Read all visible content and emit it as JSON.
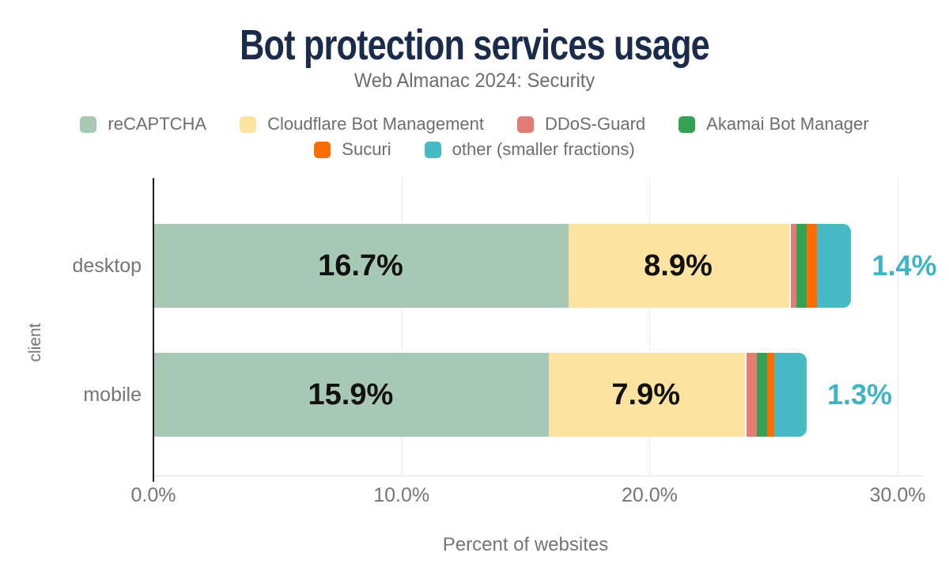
{
  "chart_data": {
    "type": "bar",
    "variant": "horizontal-stacked",
    "title": "Bot protection services usage",
    "subtitle": "Web Almanac 2024: Security",
    "xlabel": "Percent of websites",
    "ylabel": "client",
    "categories": [
      "desktop",
      "mobile"
    ],
    "series": [
      {
        "name": "reCAPTCHA",
        "color": "#a6c8b4",
        "values": [
          16.7,
          15.9
        ]
      },
      {
        "name": "Cloudflare Bot Management",
        "color": "#fde3a0",
        "values": [
          8.9,
          7.9
        ]
      },
      {
        "name": "DDoS-Guard",
        "color": "#e17d74",
        "values": [
          0.3,
          0.5
        ]
      },
      {
        "name": "Akamai Bot Manager",
        "color": "#35a152",
        "values": [
          0.4,
          0.4
        ]
      },
      {
        "name": "Sucuri",
        "color": "#fe6d00",
        "values": [
          0.4,
          0.3
        ]
      },
      {
        "name": "other (smaller fractions)",
        "color": "#47bac4",
        "values": [
          1.4,
          1.3
        ]
      }
    ],
    "bar_labels": {
      "inside": [
        [
          "16.7%",
          "8.9%"
        ],
        [
          "15.9%",
          "7.9%"
        ]
      ],
      "outside": [
        "1.4%",
        "1.3%"
      ]
    },
    "x_ticks": [
      {
        "label": "0.0%",
        "value": 0
      },
      {
        "label": "10.0%",
        "value": 10
      },
      {
        "label": "20.0%",
        "value": 20
      },
      {
        "label": "30.0%",
        "value": 30
      }
    ],
    "xlim": [
      0,
      30
    ],
    "grid": "vertical",
    "legend_position": "top",
    "legend_rows": [
      4,
      2
    ]
  },
  "colors": {
    "title": "#1b2b4a",
    "subtitle": "#6d6d6d",
    "axis_text": "#757575",
    "legend_text": "#6e6e6e",
    "value_label": "#111111",
    "outside_label": "#3eb4c4",
    "axis_line": "#1f1f1f",
    "gridline": "#ebebeb",
    "baseline": "#e0e0e0",
    "background": "#ffffff"
  }
}
